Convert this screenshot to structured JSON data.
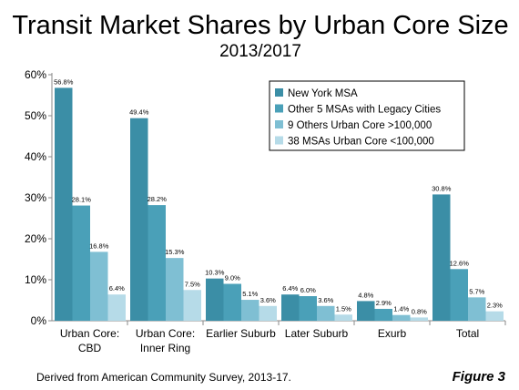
{
  "chart_data": {
    "type": "bar",
    "title": "Transit Market Shares by Urban Core Size",
    "subtitle": "2013/2017",
    "categories": [
      [
        "Urban Core:",
        "CBD"
      ],
      [
        "Urban Core:",
        "Inner Ring"
      ],
      [
        "Earlier Suburb"
      ],
      [
        "Later Suburb"
      ],
      [
        "Exurb"
      ],
      [
        "Total"
      ]
    ],
    "series": [
      {
        "name": "New York MSA",
        "color": "#3b8ea6",
        "values": [
          56.8,
          49.4,
          10.3,
          6.4,
          4.8,
          30.8
        ],
        "labels": [
          "56.8%",
          "49.4%",
          "10.3%",
          "6.4%",
          "4.8%",
          "30.8%"
        ]
      },
      {
        "name": "Other 5 MSAs with Legacy Cities",
        "color": "#4aa0b8",
        "values": [
          28.1,
          28.2,
          9.0,
          6.0,
          2.9,
          12.6
        ],
        "labels": [
          "28.1%",
          "28.2%",
          "9.0%",
          "6.0%",
          "2.9%",
          "12.6%"
        ]
      },
      {
        "name": "9 Others Urban Core >100,000",
        "color": "#7fbfd3",
        "values": [
          16.8,
          15.3,
          5.1,
          3.6,
          1.4,
          5.7
        ],
        "labels": [
          "16.8%",
          "15.3%",
          "5.1%",
          "3.6%",
          "1.4%",
          "5.7%"
        ]
      },
      {
        "name": "38 MSAs Urban Core <100,000",
        "color": "#b6dbe8",
        "values": [
          6.4,
          7.5,
          3.6,
          1.5,
          0.8,
          2.3
        ],
        "labels": [
          "6.4%",
          "7.5%",
          "3.6%",
          "1.5%",
          "0.8%",
          "2.3%"
        ]
      }
    ],
    "yticks": [
      "0%",
      "10%",
      "20%",
      "30%",
      "40%",
      "50%",
      "60%"
    ],
    "ylim": [
      0,
      60
    ],
    "grid": false,
    "legend": "top-right"
  },
  "footer": {
    "source": "Derived from American Community Survey, 2013-17.",
    "figure_label": "Figure 3"
  }
}
